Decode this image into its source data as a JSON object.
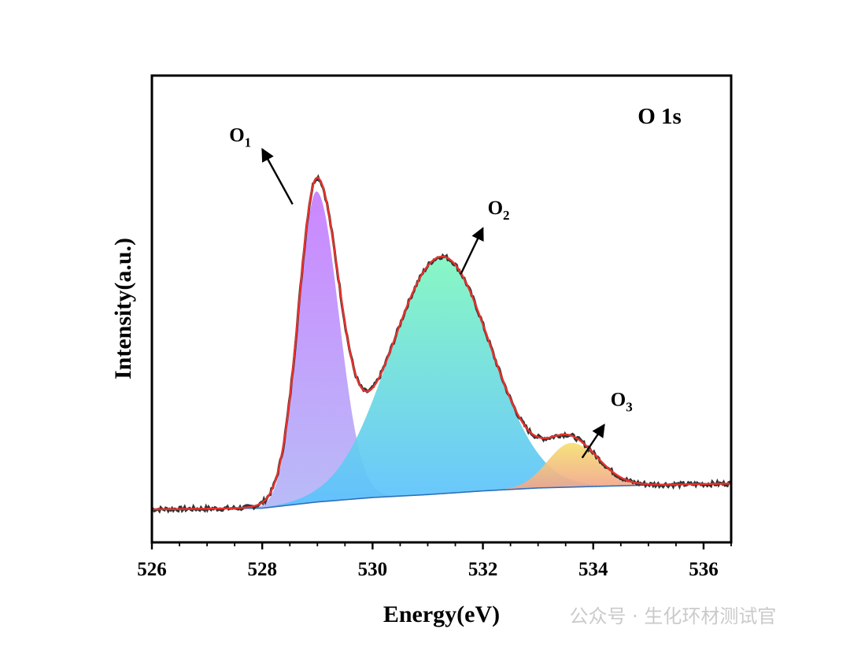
{
  "chart_data": {
    "type": "line",
    "title": "O 1s",
    "xlabel": "Energy(eV)",
    "ylabel": "Intensity(a.u.)",
    "xlim": [
      526,
      536.5
    ],
    "ylim": [
      -0.09,
      1.18
    ],
    "xticks": [
      526,
      528,
      530,
      532,
      534,
      536
    ],
    "yticks_shown": false,
    "grid": false,
    "background": {
      "x": [
        526.0,
        528.0,
        529.0,
        530.0,
        531.0,
        532.0,
        533.0,
        534.0,
        535.0,
        536.5
      ],
      "y": [
        0.0,
        0.003,
        0.02,
        0.032,
        0.04,
        0.05,
        0.058,
        0.062,
        0.066,
        0.07
      ]
    },
    "components": [
      {
        "name": "O1",
        "center": 528.98,
        "height": 0.845,
        "fwhm_left": 0.75,
        "fwhm_right": 0.95,
        "color_top": "#c77dff",
        "color_bottom": "#b3b6f7"
      },
      {
        "name": "O2",
        "center": 531.25,
        "height": 0.645,
        "fwhm_left": 2.2,
        "fwhm_right": 2.1,
        "color_top": "#7ff7bf",
        "color_bottom": "#5bc0ff"
      },
      {
        "name": "O3",
        "center": 533.6,
        "height": 0.12,
        "fwhm_left": 1.0,
        "fwhm_right": 1.15,
        "color_top": "#f5e070",
        "color_bottom": "#f08a9a"
      }
    ],
    "series": [
      {
        "name": "Raw data",
        "color": "#333333"
      },
      {
        "name": "Envelope",
        "color": "#e8322c"
      }
    ],
    "annotations": [
      {
        "label": "O",
        "sub": "1",
        "arrow_from": [
          528.55,
          0.83
        ],
        "arrow_to": [
          528.0,
          0.98
        ]
      },
      {
        "label": "O",
        "sub": "2",
        "arrow_from": [
          531.6,
          0.64
        ],
        "arrow_to": [
          532.0,
          0.765
        ]
      },
      {
        "label": "O",
        "sub": "3",
        "arrow_from": [
          533.8,
          0.14
        ],
        "arrow_to": [
          534.2,
          0.23
        ]
      }
    ]
  },
  "watermark": "公众号 · 生化环材测试官"
}
